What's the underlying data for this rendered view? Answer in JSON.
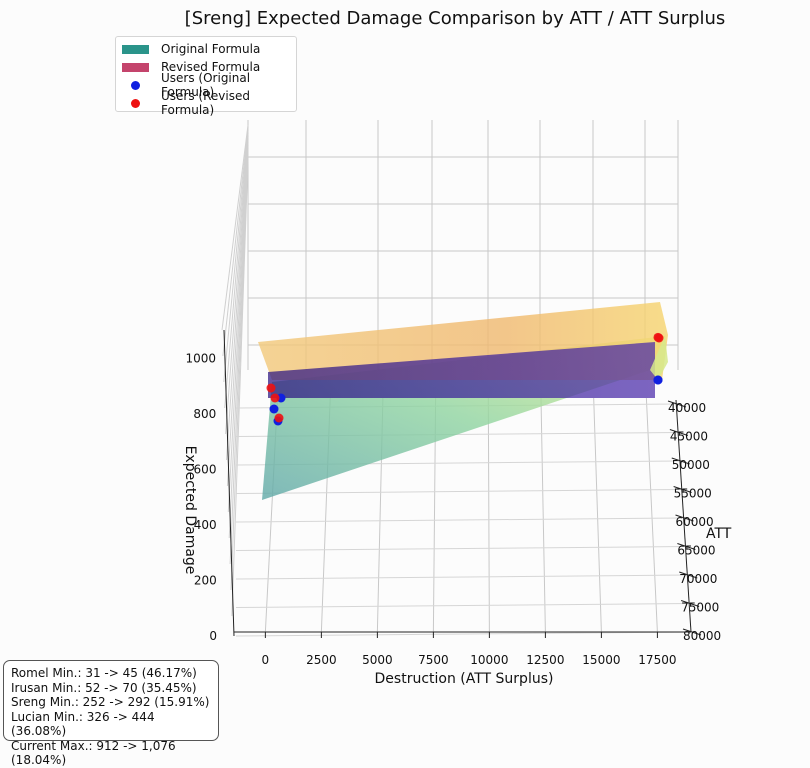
{
  "chart_data": {
    "type": "surface3d",
    "title": "[Sreng] Expected Damage Comparison by ATT / ATT Surplus",
    "xlabel": "Destruction (ATT Surplus)",
    "ylabel": "ATT",
    "zlabel": "Expected Damage",
    "x_ticks": [
      "0",
      "2500",
      "5000",
      "7500",
      "10000",
      "12500",
      "15000",
      "17500"
    ],
    "y_ticks": [
      "40000",
      "45000",
      "50000",
      "55000",
      "60000",
      "65000",
      "70000",
      "75000",
      "80000"
    ],
    "z_ticks": [
      "0",
      "200",
      "400",
      "600",
      "800",
      "1000"
    ],
    "xlim": [
      -1400,
      19000
    ],
    "ylim": [
      40000,
      80000
    ],
    "zlim": [
      0,
      1100
    ],
    "grid": true,
    "legend_position": "top-left",
    "legend": [
      {
        "label": "Original Formula",
        "kind": "patch",
        "color": "#2a948a"
      },
      {
        "label": "Revised Formula",
        "kind": "patch",
        "color": "#c4446c"
      },
      {
        "label": "Users (Original Formula)",
        "kind": "marker",
        "color": "#1020e0"
      },
      {
        "label": "Users (Revised Formula)",
        "kind": "marker",
        "color": "#ee1111"
      }
    ],
    "users_original": [
      [
        0,
        40000,
        85
      ],
      [
        500,
        40000,
        122
      ],
      [
        0,
        40000,
        252
      ],
      [
        500,
        40000,
        326
      ],
      [
        18000,
        40000,
        912
      ]
    ],
    "users_revised": [
      [
        0,
        40000,
        95
      ],
      [
        500,
        40000,
        150
      ],
      [
        0,
        40000,
        292
      ],
      [
        500,
        40000,
        444
      ],
      [
        18000,
        40000,
        1076
      ]
    ],
    "stats": [
      "Romel Min.: 31 -> 45 (46.17%)",
      "Irusan Min.: 52 -> 70 (35.45%)",
      "Sreng Min.: 252 -> 292 (15.91%)",
      "Lucian Min.: 326 -> 444 (36.08%)",
      "Current Max.: 912 -> 1,076 (18.04%)"
    ]
  }
}
